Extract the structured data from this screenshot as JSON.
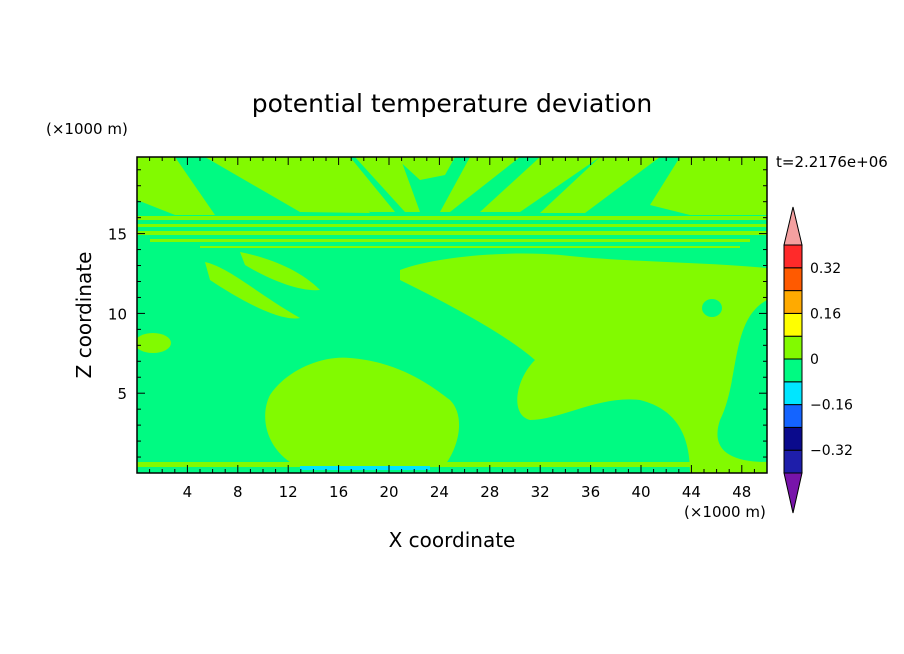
{
  "chart_data": {
    "type": "heatmap",
    "title": "potential temperature deviation",
    "xlabel": "X coordinate",
    "ylabel": "Z coordinate",
    "x_unit": "(×1000 m)",
    "y_unit": "(×1000 m)",
    "time_label": "t=2.2176e+06",
    "xlim": [
      0,
      50
    ],
    "ylim": [
      0,
      19.8
    ],
    "x_ticks": [
      4,
      8,
      12,
      16,
      20,
      24,
      28,
      32,
      36,
      40,
      44,
      48
    ],
    "y_ticks": [
      5,
      10,
      15
    ],
    "colorbar": {
      "levels": [
        -0.4,
        -0.32,
        -0.24,
        -0.16,
        -0.08,
        0,
        0.08,
        0.16,
        0.24,
        0.32,
        0.4
      ],
      "tick_labels": [
        "0.32",
        "0.16",
        "0",
        "−0.16",
        "−0.32"
      ],
      "tick_values": [
        0.32,
        0.16,
        0,
        -0.16,
        -0.32
      ],
      "colors": [
        "#5a1496",
        "#1e1eaa",
        "#0a0a8c",
        "#1464ff",
        "#00e6ff",
        "#00fa82",
        "#82fa00",
        "#ffff00",
        "#ffaa00",
        "#ff5a00",
        "#ff2a2a"
      ],
      "over_color": "#f4a0a0",
      "under_color": "#7814aa"
    },
    "field": {
      "background_level_color": "#00fa82",
      "positive_anomaly_color": "#82fa00",
      "negative_anomaly_color": "#00e6ff"
    }
  }
}
